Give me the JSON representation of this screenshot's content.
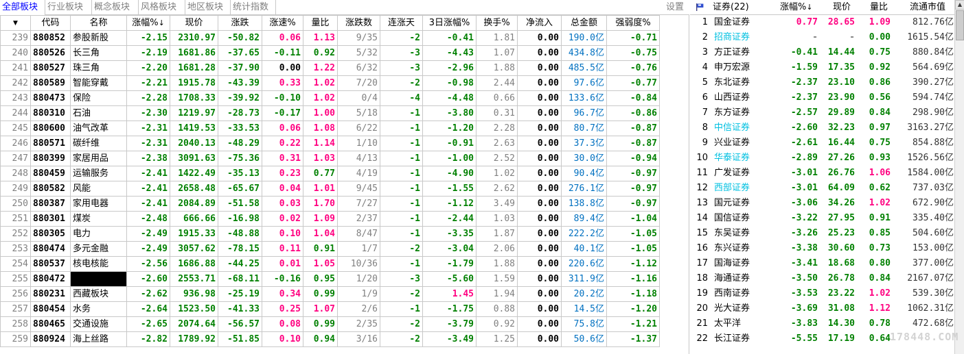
{
  "tabs": [
    "全部板块",
    "行业板块",
    "概念板块",
    "风格板块",
    "地区板块",
    "统计指数"
  ],
  "settings_label": "设置",
  "columns": [
    "",
    "代码",
    "名称",
    "涨幅%",
    "现价",
    "涨跌",
    "涨速%",
    "量比",
    "涨跌数",
    "连涨天",
    "3日涨幅%",
    "换手%",
    "净流入",
    "总金额",
    "强弱度%"
  ],
  "sort_arrow": "↓",
  "rows": [
    {
      "idx": "239",
      "code": "880852",
      "name": "参股新股",
      "pct": "-2.15",
      "price": "2310.97",
      "chg": "-50.82",
      "speed": "0.06",
      "vr": "1.13",
      "ud": "9/35",
      "days": "-2",
      "p3": "-0.41",
      "turn": "1.81",
      "net": "0.00",
      "amt": "190.0",
      "amt_unit": "亿",
      "str": "-0.71",
      "masked": false
    },
    {
      "idx": "240",
      "code": "880526",
      "name": "长三角",
      "pct": "-2.19",
      "price": "1681.86",
      "chg": "-37.65",
      "speed": "-0.11",
      "vr": "0.92",
      "ud": "5/32",
      "days": "-3",
      "p3": "-4.43",
      "turn": "1.07",
      "net": "0.00",
      "amt": "434.8",
      "amt_unit": "亿",
      "str": "-0.75",
      "masked": false
    },
    {
      "idx": "241",
      "code": "880527",
      "name": "珠三角",
      "pct": "-2.20",
      "price": "1681.28",
      "chg": "-37.90",
      "speed": "0.00",
      "vr": "1.22",
      "ud": "6/32",
      "days": "-3",
      "p3": "-2.96",
      "turn": "1.88",
      "net": "0.00",
      "amt": "485.5",
      "amt_unit": "亿",
      "str": "-0.76",
      "masked": false
    },
    {
      "idx": "242",
      "code": "880589",
      "name": "智能穿戴",
      "pct": "-2.21",
      "price": "1915.78",
      "chg": "-43.39",
      "speed": "0.33",
      "vr": "1.02",
      "ud": "7/20",
      "days": "-2",
      "p3": "-0.98",
      "turn": "2.44",
      "net": "0.00",
      "amt": "97.6",
      "amt_unit": "亿",
      "str": "-0.77",
      "masked": false
    },
    {
      "idx": "243",
      "code": "880473",
      "name": "保险",
      "pct": "-2.28",
      "price": "1708.33",
      "chg": "-39.92",
      "speed": "-0.10",
      "vr": "1.02",
      "ud": "0/4",
      "days": "-4",
      "p3": "-4.48",
      "turn": "0.66",
      "net": "0.00",
      "amt": "133.6",
      "amt_unit": "亿",
      "str": "-0.84",
      "masked": false
    },
    {
      "idx": "244",
      "code": "880310",
      "name": "石油",
      "pct": "-2.30",
      "price": "1219.97",
      "chg": "-28.73",
      "speed": "-0.17",
      "vr": "1.00",
      "ud": "5/18",
      "days": "-1",
      "p3": "-3.80",
      "turn": "0.31",
      "net": "0.00",
      "amt": "96.7",
      "amt_unit": "亿",
      "str": "-0.86",
      "masked": false
    },
    {
      "idx": "245",
      "code": "880600",
      "name": "油气改革",
      "pct": "-2.31",
      "price": "1419.53",
      "chg": "-33.53",
      "speed": "0.06",
      "vr": "1.08",
      "ud": "6/22",
      "days": "-1",
      "p3": "-1.20",
      "turn": "2.28",
      "net": "0.00",
      "amt": "80.7",
      "amt_unit": "亿",
      "str": "-0.87",
      "masked": false
    },
    {
      "idx": "246",
      "code": "880571",
      "name": "碳纤维",
      "pct": "-2.31",
      "price": "2040.13",
      "chg": "-48.29",
      "speed": "0.22",
      "vr": "1.14",
      "ud": "1/10",
      "days": "-1",
      "p3": "-0.91",
      "turn": "2.63",
      "net": "0.00",
      "amt": "37.3",
      "amt_unit": "亿",
      "str": "-0.87",
      "masked": false
    },
    {
      "idx": "247",
      "code": "880399",
      "name": "家居用品",
      "pct": "-2.38",
      "price": "3091.63",
      "chg": "-75.36",
      "speed": "0.31",
      "vr": "1.03",
      "ud": "4/13",
      "days": "-1",
      "p3": "-1.00",
      "turn": "2.52",
      "net": "0.00",
      "amt": "30.0",
      "amt_unit": "亿",
      "str": "-0.94",
      "masked": false
    },
    {
      "idx": "248",
      "code": "880459",
      "name": "运输服务",
      "pct": "-2.41",
      "price": "1422.49",
      "chg": "-35.13",
      "speed": "0.23",
      "vr": "0.77",
      "ud": "4/19",
      "days": "-1",
      "p3": "-4.90",
      "turn": "1.02",
      "net": "0.00",
      "amt": "90.4",
      "amt_unit": "亿",
      "str": "-0.97",
      "masked": false
    },
    {
      "idx": "249",
      "code": "880582",
      "name": "风能",
      "pct": "-2.41",
      "price": "2658.48",
      "chg": "-65.67",
      "speed": "0.04",
      "vr": "1.01",
      "ud": "9/45",
      "days": "-1",
      "p3": "-1.55",
      "turn": "2.62",
      "net": "0.00",
      "amt": "276.1",
      "amt_unit": "亿",
      "str": "-0.97",
      "masked": false
    },
    {
      "idx": "250",
      "code": "880387",
      "name": "家用电器",
      "pct": "-2.41",
      "price": "2084.89",
      "chg": "-51.58",
      "speed": "0.03",
      "vr": "1.70",
      "ud": "7/27",
      "days": "-1",
      "p3": "-1.12",
      "turn": "3.49",
      "net": "0.00",
      "amt": "138.8",
      "amt_unit": "亿",
      "str": "-0.97",
      "masked": false
    },
    {
      "idx": "251",
      "code": "880301",
      "name": "煤炭",
      "pct": "-2.48",
      "price": "666.66",
      "chg": "-16.98",
      "speed": "0.02",
      "vr": "1.09",
      "ud": "2/37",
      "days": "-1",
      "p3": "-2.44",
      "turn": "1.03",
      "net": "0.00",
      "amt": "89.4",
      "amt_unit": "亿",
      "str": "-1.04",
      "masked": false
    },
    {
      "idx": "252",
      "code": "880305",
      "name": "电力",
      "pct": "-2.49",
      "price": "1915.33",
      "chg": "-48.88",
      "speed": "0.10",
      "vr": "1.04",
      "ud": "8/47",
      "days": "-1",
      "p3": "-3.35",
      "turn": "1.87",
      "net": "0.00",
      "amt": "222.2",
      "amt_unit": "亿",
      "str": "-1.05",
      "masked": false
    },
    {
      "idx": "253",
      "code": "880474",
      "name": "多元金融",
      "pct": "-2.49",
      "price": "3057.62",
      "chg": "-78.15",
      "speed": "0.11",
      "vr": "0.91",
      "ud": "1/7",
      "days": "-2",
      "p3": "-3.04",
      "turn": "2.06",
      "net": "0.00",
      "amt": "40.1",
      "amt_unit": "亿",
      "str": "-1.05",
      "masked": false
    },
    {
      "idx": "254",
      "code": "880537",
      "name": "核电核能",
      "pct": "-2.56",
      "price": "1686.88",
      "chg": "-44.25",
      "speed": "0.01",
      "vr": "1.05",
      "ud": "10/36",
      "days": "-1",
      "p3": "-1.79",
      "turn": "1.88",
      "net": "0.00",
      "amt": "220.6",
      "amt_unit": "亿",
      "str": "-1.12",
      "masked": false
    },
    {
      "idx": "255",
      "code": "880472",
      "name": "",
      "pct": "-2.60",
      "price": "2553.71",
      "chg": "-68.11",
      "speed": "-0.16",
      "vr": "0.95",
      "ud": "1/20",
      "days": "-3",
      "p3": "-5.60",
      "turn": "1.59",
      "net": "0.00",
      "amt": "311.9",
      "amt_unit": "亿",
      "str": "-1.16",
      "masked": true
    },
    {
      "idx": "256",
      "code": "880231",
      "name": "西藏板块",
      "pct": "-2.62",
      "price": "936.98",
      "chg": "-25.19",
      "speed": "0.34",
      "vr": "0.99",
      "ud": "1/9",
      "days": "-2",
      "p3": "1.45",
      "turn": "1.94",
      "net": "0.00",
      "amt": "20.2",
      "amt_unit": "亿",
      "str": "-1.18",
      "masked": false
    },
    {
      "idx": "257",
      "code": "880454",
      "name": "水务",
      "pct": "-2.64",
      "price": "1523.50",
      "chg": "-41.33",
      "speed": "0.25",
      "vr": "1.07",
      "ud": "2/6",
      "days": "-1",
      "p3": "-1.75",
      "turn": "0.88",
      "net": "0.00",
      "amt": "14.5",
      "amt_unit": "亿",
      "str": "-1.20",
      "masked": false
    },
    {
      "idx": "258",
      "code": "880465",
      "name": "交通设施",
      "pct": "-2.65",
      "price": "2074.64",
      "chg": "-56.57",
      "speed": "0.08",
      "vr": "0.99",
      "ud": "2/35",
      "days": "-2",
      "p3": "-3.79",
      "turn": "0.92",
      "net": "0.00",
      "amt": "75.8",
      "amt_unit": "亿",
      "str": "-1.21",
      "masked": false
    },
    {
      "idx": "259",
      "code": "880924",
      "name": "海上丝路",
      "pct": "-2.82",
      "price": "1789.92",
      "chg": "-51.85",
      "speed": "0.10",
      "vr": "0.94",
      "ud": "3/16",
      "days": "-2",
      "p3": "-3.49",
      "turn": "1.25",
      "net": "0.00",
      "amt": "50.6",
      "amt_unit": "亿",
      "str": "-1.37",
      "masked": false
    }
  ],
  "right_panel": {
    "header": {
      "name": "证券(22)",
      "chg": "涨幅%",
      "sort_arrow": "↓",
      "price": "现价",
      "vr": "量比",
      "mcap": "流通市值"
    },
    "rows": [
      {
        "idx": "1",
        "name": "国金证券",
        "chg": "0.77",
        "price": "28.65",
        "vr": "1.09",
        "mcap": "812.76",
        "unit": "亿",
        "name_color": "black"
      },
      {
        "idx": "2",
        "name": "招商证券",
        "chg": "-",
        "price": "-",
        "vr": "0.00",
        "mcap": "1615.54",
        "unit": "亿",
        "name_color": "cyan"
      },
      {
        "idx": "3",
        "name": "方正证券",
        "chg": "-0.41",
        "price": "14.44",
        "vr": "0.75",
        "mcap": "880.84",
        "unit": "亿",
        "name_color": "black"
      },
      {
        "idx": "4",
        "name": "申万宏源",
        "chg": "-1.59",
        "price": "17.35",
        "vr": "0.92",
        "mcap": "564.69",
        "unit": "亿",
        "name_color": "black"
      },
      {
        "idx": "5",
        "name": "东北证券",
        "chg": "-2.37",
        "price": "23.10",
        "vr": "0.86",
        "mcap": "390.27",
        "unit": "亿",
        "name_color": "black"
      },
      {
        "idx": "6",
        "name": "山西证券",
        "chg": "-2.37",
        "price": "23.90",
        "vr": "0.56",
        "mcap": "594.74",
        "unit": "亿",
        "name_color": "black"
      },
      {
        "idx": "7",
        "name": "东方证券",
        "chg": "-2.57",
        "price": "29.89",
        "vr": "0.84",
        "mcap": "298.90",
        "unit": "亿",
        "name_color": "black"
      },
      {
        "idx": "8",
        "name": "中信证券",
        "chg": "-2.60",
        "price": "32.23",
        "vr": "0.97",
        "mcap": "3163.27",
        "unit": "亿",
        "name_color": "cyan"
      },
      {
        "idx": "9",
        "name": "兴业证券",
        "chg": "-2.61",
        "price": "16.44",
        "vr": "0.75",
        "mcap": "854.88",
        "unit": "亿",
        "name_color": "black"
      },
      {
        "idx": "10",
        "name": "华泰证券",
        "chg": "-2.89",
        "price": "27.26",
        "vr": "0.93",
        "mcap": "1526.56",
        "unit": "亿",
        "name_color": "cyan"
      },
      {
        "idx": "11",
        "name": "广发证券",
        "chg": "-3.01",
        "price": "26.76",
        "vr": "1.06",
        "mcap": "1584.00",
        "unit": "亿",
        "name_color": "black"
      },
      {
        "idx": "12",
        "name": "西部证券",
        "chg": "-3.01",
        "price": "64.09",
        "vr": "0.62",
        "mcap": "737.03",
        "unit": "亿",
        "name_color": "cyan"
      },
      {
        "idx": "13",
        "name": "国元证券",
        "chg": "-3.06",
        "price": "34.26",
        "vr": "1.02",
        "mcap": "672.90",
        "unit": "亿",
        "name_color": "black"
      },
      {
        "idx": "14",
        "name": "国信证券",
        "chg": "-3.22",
        "price": "27.95",
        "vr": "0.91",
        "mcap": "335.40",
        "unit": "亿",
        "name_color": "black"
      },
      {
        "idx": "15",
        "name": "东吴证券",
        "chg": "-3.26",
        "price": "25.23",
        "vr": "0.85",
        "mcap": "504.60",
        "unit": "亿",
        "name_color": "black"
      },
      {
        "idx": "16",
        "name": "东兴证券",
        "chg": "-3.38",
        "price": "30.60",
        "vr": "0.73",
        "mcap": "153.00",
        "unit": "亿",
        "name_color": "black"
      },
      {
        "idx": "17",
        "name": "国海证券",
        "chg": "-3.41",
        "price": "18.68",
        "vr": "0.80",
        "mcap": "377.00",
        "unit": "亿",
        "name_color": "black"
      },
      {
        "idx": "18",
        "name": "海通证券",
        "chg": "-3.50",
        "price": "26.78",
        "vr": "0.84",
        "mcap": "2167.07",
        "unit": "亿",
        "name_color": "black"
      },
      {
        "idx": "19",
        "name": "西南证券",
        "chg": "-3.53",
        "price": "23.22",
        "vr": "1.02",
        "mcap": "539.30",
        "unit": "亿",
        "name_color": "black"
      },
      {
        "idx": "20",
        "name": "光大证券",
        "chg": "-3.69",
        "price": "31.08",
        "vr": "1.12",
        "mcap": "1062.31",
        "unit": "亿",
        "name_color": "black"
      },
      {
        "idx": "21",
        "name": "太平洋",
        "chg": "-3.83",
        "price": "14.30",
        "vr": "0.78",
        "mcap": "472.68",
        "unit": "亿",
        "name_color": "black"
      },
      {
        "idx": "22",
        "name": "长江证券",
        "chg": "-5.55",
        "price": "17.19",
        "vr": "0.64",
        "mcap": "",
        "unit": "",
        "name_color": "black"
      }
    ]
  },
  "watermark": "178448.COM",
  "colors": {
    "up": "#ff0080",
    "down": "#008000",
    "neutral": "#000000",
    "link": "#0070c0",
    "highlight_name": "#00c0e0",
    "active_tab": "#0000ff"
  }
}
